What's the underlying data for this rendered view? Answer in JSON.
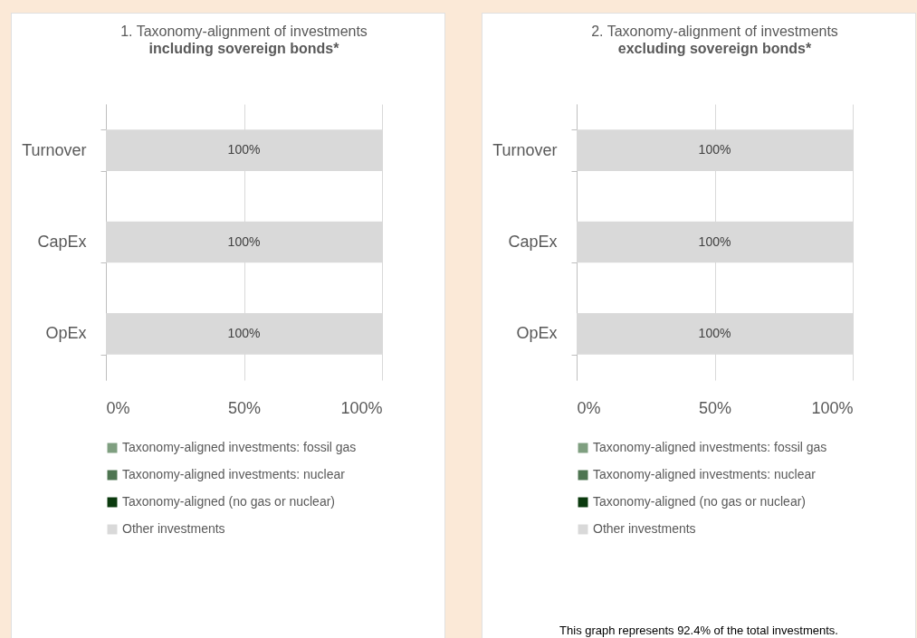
{
  "chart_data": [
    {
      "type": "bar",
      "orientation": "horizontal",
      "stacked": true,
      "title": "1. Taxonomy-alignment of investments",
      "subtitle": "including sovereign bonds*",
      "categories": [
        "Turnover",
        "CapEx",
        "OpEx"
      ],
      "series": [
        {
          "name": "Taxonomy-aligned investments: fossil gas",
          "color": "#7f9f80",
          "values": [
            0,
            0,
            0
          ]
        },
        {
          "name": "Taxonomy-aligned investments: nuclear",
          "color": "#4e7551",
          "values": [
            0,
            0,
            0
          ]
        },
        {
          "name": "Taxonomy-aligned (no gas or nuclear)",
          "color": "#0b3a0e",
          "values": [
            0,
            0,
            0
          ]
        },
        {
          "name": "Other investments",
          "color": "#d9d9d9",
          "values": [
            100,
            100,
            100
          ],
          "value_labels": [
            "100%",
            "100%",
            "100%"
          ]
        }
      ],
      "xlim": [
        0,
        100
      ],
      "xticks": [
        {
          "value": 0,
          "label": "0%"
        },
        {
          "value": 50,
          "label": "50%"
        },
        {
          "value": 100,
          "label": "100%"
        }
      ],
      "grid": "x",
      "legend": "bottom"
    },
    {
      "type": "bar",
      "orientation": "horizontal",
      "stacked": true,
      "title": "2. Taxonomy-alignment of investments",
      "subtitle": "excluding sovereign bonds*",
      "categories": [
        "Turnover",
        "CapEx",
        "OpEx"
      ],
      "series": [
        {
          "name": "Taxonomy-aligned investments: fossil gas",
          "color": "#7f9f80",
          "values": [
            0,
            0,
            0
          ]
        },
        {
          "name": "Taxonomy-aligned investments: nuclear",
          "color": "#4e7551",
          "values": [
            0,
            0,
            0
          ]
        },
        {
          "name": "Taxonomy-aligned (no gas or nuclear)",
          "color": "#0b3a0e",
          "values": [
            0,
            0,
            0
          ]
        },
        {
          "name": "Other investments",
          "color": "#d9d9d9",
          "values": [
            100,
            100,
            100
          ],
          "value_labels": [
            "100%",
            "100%",
            "100%"
          ]
        }
      ],
      "xlim": [
        0,
        100
      ],
      "xticks": [
        {
          "value": 0,
          "label": "0%"
        },
        {
          "value": 50,
          "label": "50%"
        },
        {
          "value": 100,
          "label": "100%"
        }
      ],
      "grid": "x",
      "legend": "bottom",
      "annotations": [
        "This graph  represents 92.4% of the total investments."
      ]
    }
  ]
}
